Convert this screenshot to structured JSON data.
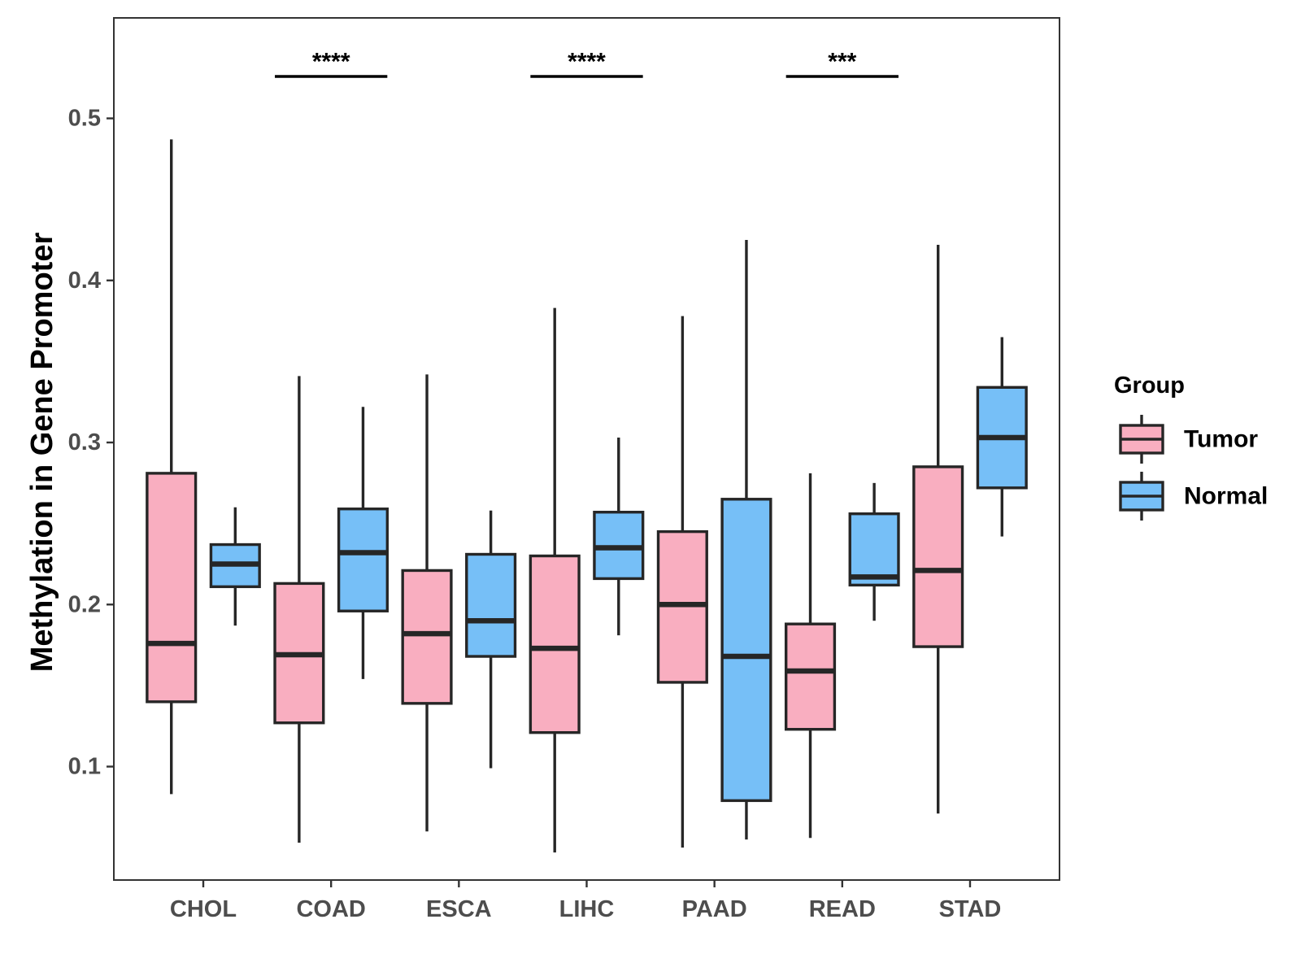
{
  "chart_data": {
    "type": "box",
    "ylabel": "Methylation in Gene Promoter",
    "xlabel": "",
    "ylim": [
      0.03,
      0.562
    ],
    "yticks": [
      0.1,
      0.2,
      0.3,
      0.4,
      0.5
    ],
    "ytick_labels": [
      "0.1",
      "0.2",
      "0.3",
      "0.4",
      "0.5"
    ],
    "categories": [
      "CHOL",
      "COAD",
      "ESCA",
      "LIHC",
      "PAAD",
      "READ",
      "STAD"
    ],
    "legend": {
      "title": "Group",
      "position": "right",
      "items": [
        {
          "name": "Tumor",
          "color": "#f9aec0"
        },
        {
          "name": "Normal",
          "color": "#76bff7"
        }
      ]
    },
    "series": [
      {
        "name": "Tumor",
        "color": "#f9aec0",
        "boxes": [
          {
            "category": "CHOL",
            "min": 0.083,
            "q1": 0.14,
            "median": 0.176,
            "q3": 0.281,
            "max": 0.487
          },
          {
            "category": "COAD",
            "min": 0.053,
            "q1": 0.127,
            "median": 0.169,
            "q3": 0.213,
            "max": 0.341
          },
          {
            "category": "ESCA",
            "min": 0.06,
            "q1": 0.139,
            "median": 0.182,
            "q3": 0.221,
            "max": 0.342
          },
          {
            "category": "LIHC",
            "min": 0.047,
            "q1": 0.121,
            "median": 0.173,
            "q3": 0.23,
            "max": 0.383
          },
          {
            "category": "PAAD",
            "min": 0.05,
            "q1": 0.152,
            "median": 0.2,
            "q3": 0.245,
            "max": 0.378
          },
          {
            "category": "READ",
            "min": 0.056,
            "q1": 0.123,
            "median": 0.159,
            "q3": 0.188,
            "max": 0.281
          },
          {
            "category": "STAD",
            "min": 0.071,
            "q1": 0.174,
            "median": 0.221,
            "q3": 0.285,
            "max": 0.422
          }
        ]
      },
      {
        "name": "Normal",
        "color": "#76bff7",
        "boxes": [
          {
            "category": "CHOL",
            "min": 0.187,
            "q1": 0.211,
            "median": 0.225,
            "q3": 0.237,
            "max": 0.26
          },
          {
            "category": "COAD",
            "min": 0.154,
            "q1": 0.196,
            "median": 0.232,
            "q3": 0.259,
            "max": 0.322
          },
          {
            "category": "ESCA",
            "min": 0.099,
            "q1": 0.168,
            "median": 0.19,
            "q3": 0.231,
            "max": 0.258
          },
          {
            "category": "LIHC",
            "min": 0.181,
            "q1": 0.216,
            "median": 0.235,
            "q3": 0.257,
            "max": 0.303
          },
          {
            "category": "PAAD",
            "min": 0.055,
            "q1": 0.079,
            "median": 0.168,
            "q3": 0.265,
            "max": 0.425
          },
          {
            "category": "READ",
            "min": 0.19,
            "q1": 0.212,
            "median": 0.217,
            "q3": 0.256,
            "max": 0.275
          },
          {
            "category": "STAD",
            "min": 0.242,
            "q1": 0.272,
            "median": 0.303,
            "q3": 0.334,
            "max": 0.365
          }
        ]
      }
    ],
    "annotations": [
      {
        "category": "COAD",
        "text": "****"
      },
      {
        "category": "LIHC",
        "text": "****"
      },
      {
        "category": "READ",
        "text": "***"
      }
    ]
  }
}
